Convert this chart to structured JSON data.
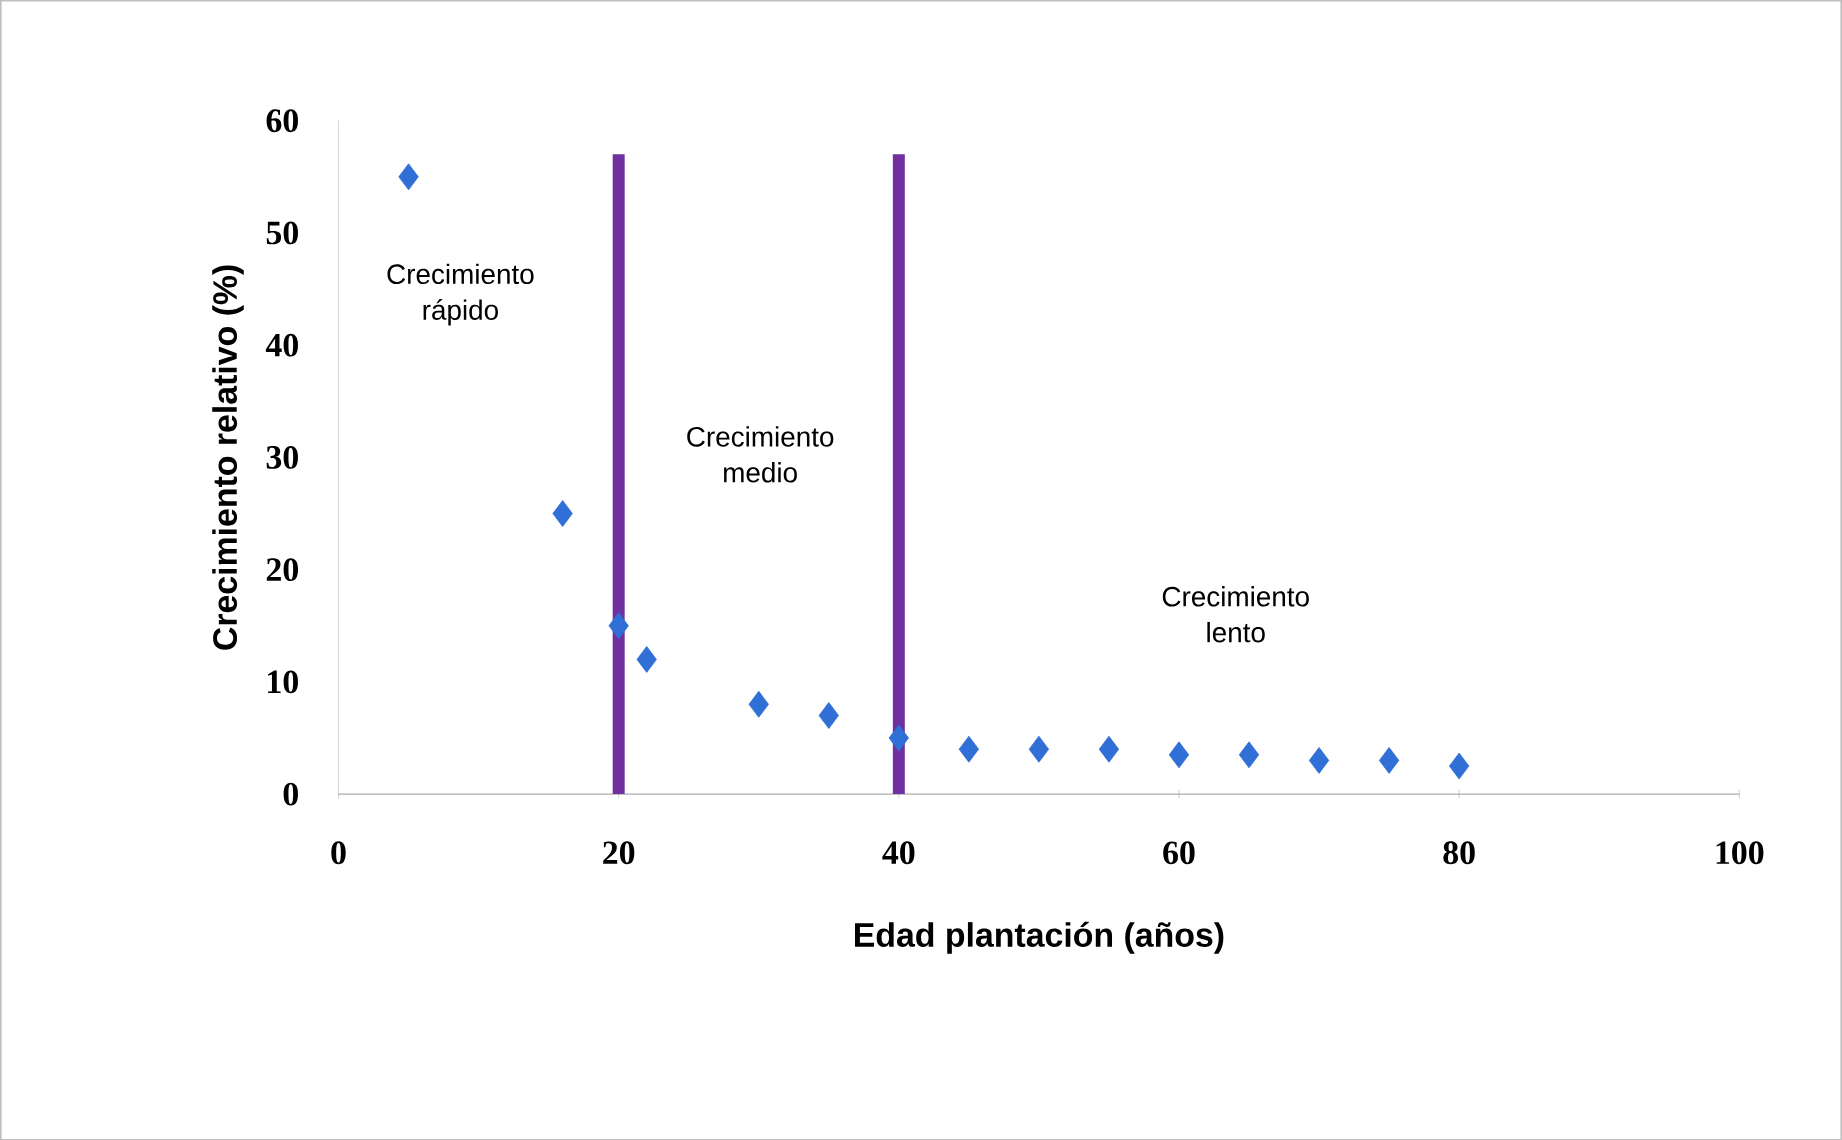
{
  "chart_data": {
    "type": "scatter",
    "xlabel": "Edad plantación (años)",
    "ylabel": "Crecimiento relativo (%)",
    "x": [
      5,
      16,
      20,
      22,
      30,
      35,
      40,
      45,
      50,
      55,
      60,
      65,
      70,
      75,
      80
    ],
    "values": [
      55,
      25,
      15,
      12,
      8,
      7,
      5,
      4,
      4,
      4,
      3.5,
      3.5,
      3,
      3,
      2.5
    ],
    "color": "#2f6fd6",
    "marker": "diamond",
    "xlim": [
      0,
      100
    ],
    "ylim": [
      0,
      60
    ],
    "xticks": [
      0,
      20,
      40,
      60,
      80,
      100
    ],
    "yticks": [
      0,
      10,
      20,
      30,
      40,
      50,
      60
    ],
    "ref_lines": [
      {
        "axis": "x",
        "value": 20,
        "color": "#7030a0"
      },
      {
        "axis": "x",
        "value": 40,
        "color": "#7030a0"
      }
    ],
    "annotations": [
      "Crecimiento rápido",
      "Crecimiento medio",
      "Crecimiento lento"
    ],
    "grid": false
  }
}
